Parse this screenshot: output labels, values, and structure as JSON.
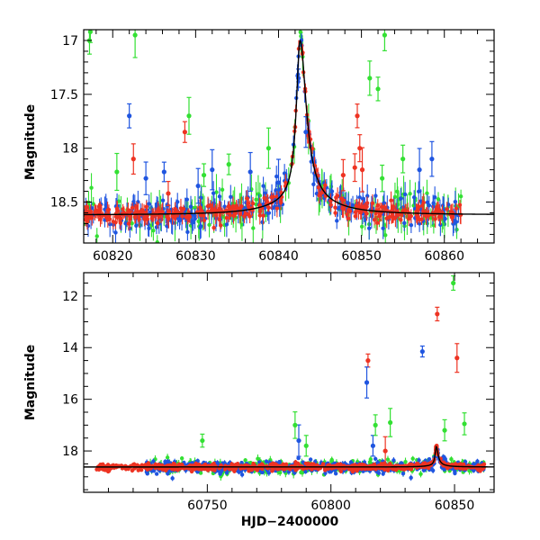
{
  "colors": {
    "red": "#ee3322",
    "blue": "#1f55e0",
    "green": "#33e033",
    "model": "#000000"
  },
  "chart_data": [
    {
      "type": "scatter",
      "panel": "top",
      "xlim": [
        60816.5,
        60866
      ],
      "ylim": [
        18.88,
        16.9
      ],
      "y_inverted": true,
      "xlabel": "",
      "ylabel": "Magnitude",
      "x_ticks": [
        60820,
        60830,
        60840,
        60850,
        60860
      ],
      "x_tick_labels": [
        "60820",
        "60830",
        "60840",
        "60850",
        "60860"
      ],
      "y_ticks": [
        17,
        17.5,
        18,
        18.5
      ],
      "y_tick_labels": [
        "17",
        "17.5",
        "18",
        "18.5"
      ],
      "baseline_mag": 18.62,
      "peak": {
        "x": 60842.6,
        "y": 17.13
      },
      "series": [
        {
          "color": "red",
          "outliers": [
            [
              60822.5,
              18.1
            ],
            [
              60826.7,
              18.42
            ],
            [
              60828.7,
              17.85
            ],
            [
              60849.5,
              17.7
            ],
            [
              60849.8,
              18.0
            ],
            [
              60849.2,
              18.18
            ],
            [
              60850.1,
              18.2
            ],
            [
              60847.8,
              18.25
            ]
          ]
        },
        {
          "color": "blue",
          "outliers": [
            [
              60822.0,
              17.7
            ],
            [
              60824.0,
              18.28
            ],
            [
              60826.2,
              18.22
            ],
            [
              60830.3,
              18.35
            ],
            [
              60832.0,
              18.2
            ],
            [
              60836.6,
              18.22
            ],
            [
              60840.0,
              18.32
            ],
            [
              60857.0,
              18.2
            ],
            [
              60858.5,
              18.1
            ],
            [
              60842.4,
              17.35
            ],
            [
              60843.3,
              17.85
            ]
          ]
        },
        {
          "color": "green",
          "outliers": [
            [
              60817.2,
              17.0
            ],
            [
              60817.3,
              16.92
            ],
            [
              60822.7,
              16.95
            ],
            [
              60829.2,
              17.7
            ],
            [
              60852.8,
              16.95
            ],
            [
              60851.0,
              17.35
            ],
            [
              60852.0,
              17.45
            ],
            [
              60855.0,
              18.1
            ],
            [
              60852.5,
              18.28
            ],
            [
              60820.5,
              18.22
            ],
            [
              60838.8,
              18.0
            ],
            [
              60834.0,
              18.15
            ],
            [
              60831.0,
              18.25
            ]
          ]
        }
      ]
    },
    {
      "type": "scatter",
      "panel": "bottom",
      "xlim": [
        60700,
        60866
      ],
      "ylim": [
        19.6,
        11.1
      ],
      "y_inverted": true,
      "xlabel": "HJD−2400000",
      "ylabel": "Magnitude",
      "x_ticks": [
        60750,
        60800,
        60850
      ],
      "x_tick_labels": [
        "60750",
        "60800",
        "60850"
      ],
      "y_ticks": [
        12,
        14,
        16,
        18
      ],
      "y_tick_labels": [
        "12",
        "14",
        "16",
        "18"
      ],
      "baseline_mag": 18.62,
      "peak": {
        "x": 60842.6,
        "y": 17.9
      },
      "series": [
        {
          "color": "red",
          "outliers": [
            [
              60815.0,
              14.5
            ],
            [
              60843.0,
              12.7
            ],
            [
              60851.0,
              14.4
            ],
            [
              60822.0,
              18.0
            ]
          ]
        },
        {
          "color": "blue",
          "outliers": [
            [
              60814.5,
              15.35
            ],
            [
              60837.0,
              14.15
            ],
            [
              60787.0,
              17.6
            ],
            [
              60817.0,
              17.8
            ]
          ]
        },
        {
          "color": "green",
          "outliers": [
            [
              60849.5,
              11.5
            ],
            [
              60785.5,
              17.0
            ],
            [
              60818.0,
              17.0
            ],
            [
              60824.0,
              16.9
            ],
            [
              60846.0,
              17.2
            ],
            [
              60854.0,
              16.95
            ],
            [
              60748.0,
              17.6
            ],
            [
              60790.0,
              17.8
            ]
          ]
        }
      ]
    }
  ]
}
